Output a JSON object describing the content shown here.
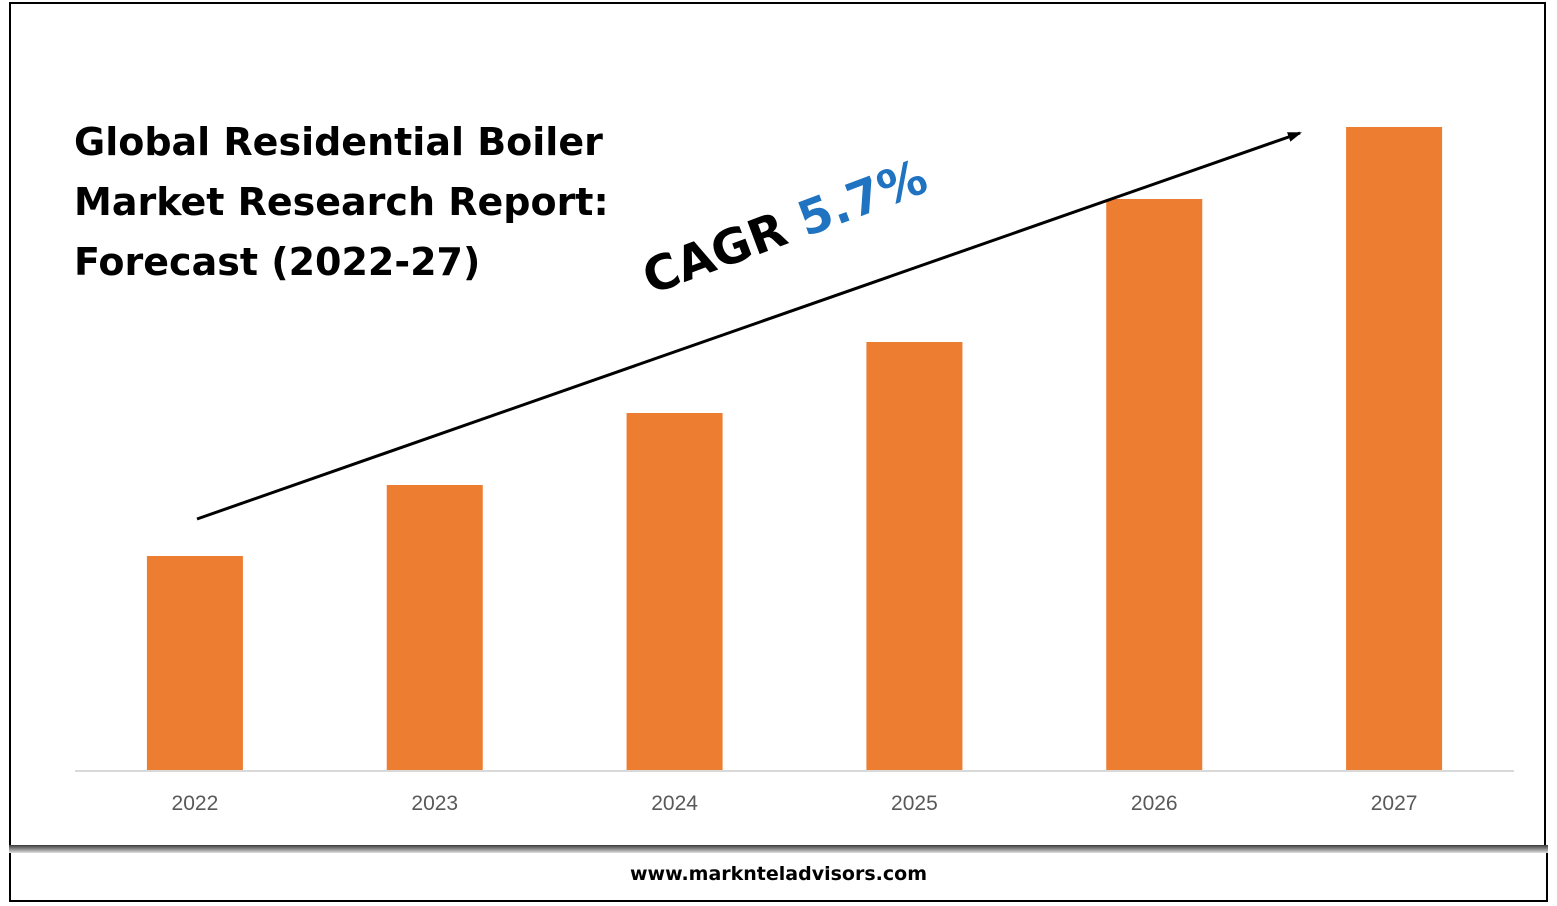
{
  "title_lines": [
    "Global Residential Boiler",
    "Market Research Report:",
    "Forecast (2022-27)"
  ],
  "cagr": {
    "label": "CAGR",
    "value": "5.7%",
    "color": "#1f73c0"
  },
  "footer": {
    "url": "www.marknteladvisors.com"
  },
  "chart_data": {
    "type": "bar",
    "categories": [
      "2022",
      "2023",
      "2024",
      "2025",
      "2026",
      "2027"
    ],
    "values": [
      214,
      285,
      357,
      428,
      571,
      643
    ],
    "bar_color": "#ed7d31",
    "title": "Global Residential Boiler Market Research Report: Forecast (2022-27)",
    "xlabel": "",
    "ylabel": "",
    "ylim": [
      0,
      643
    ],
    "grid": false,
    "legend": "none",
    "annotation": "CAGR 5.7%"
  }
}
